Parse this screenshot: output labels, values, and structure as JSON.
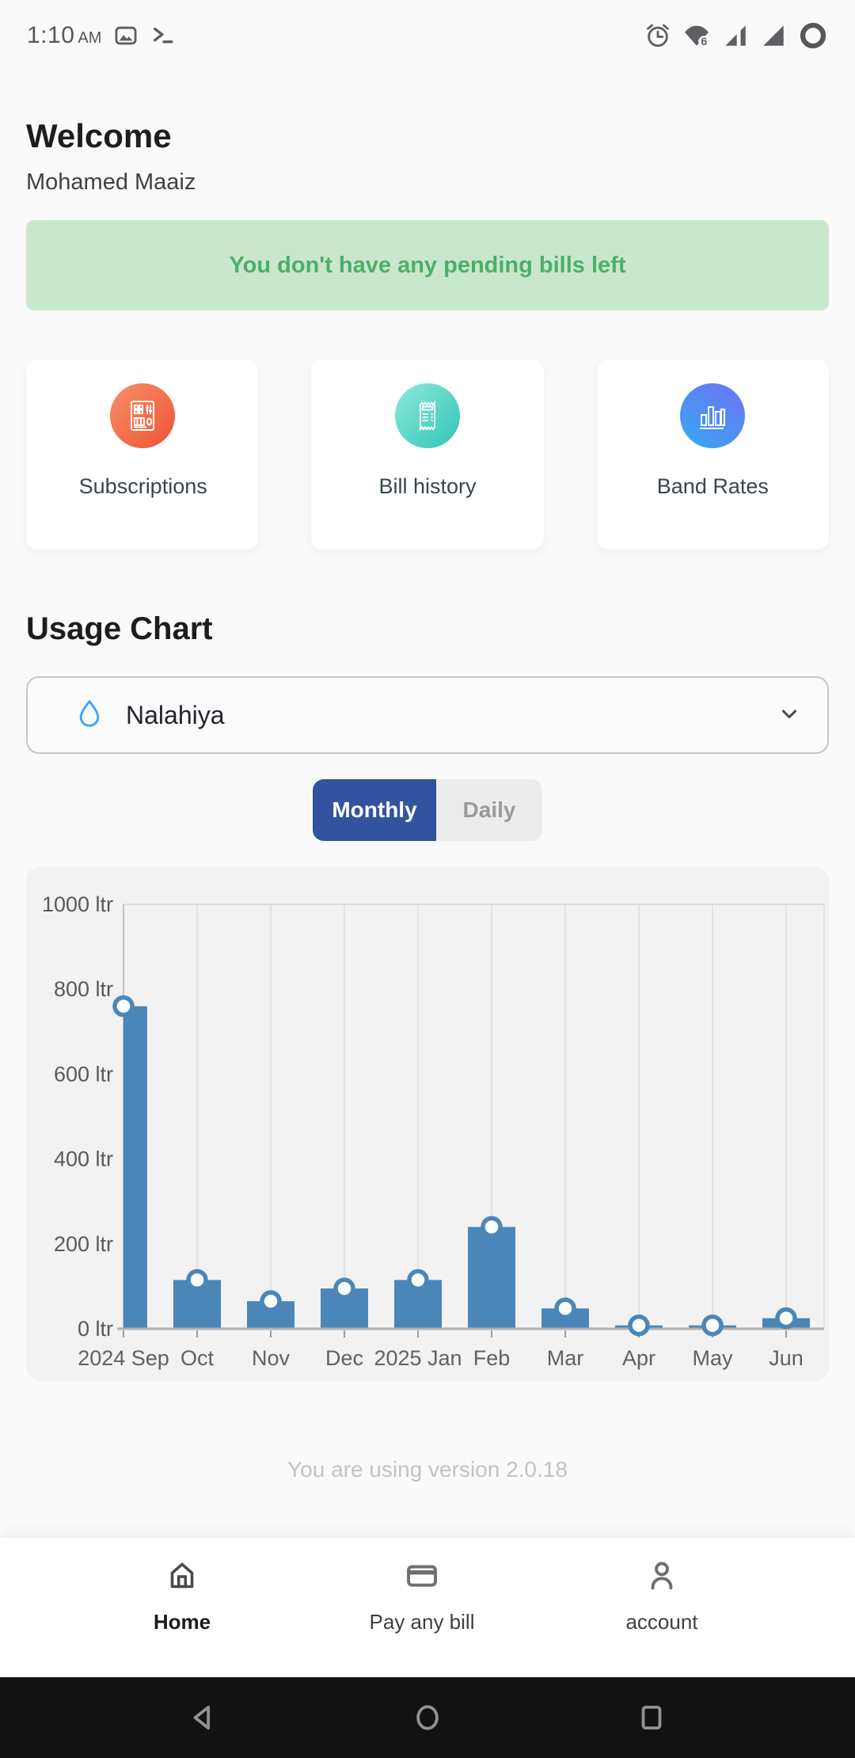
{
  "status_bar": {
    "time": "1:10",
    "meridiem": "AM",
    "wifi_label": "6",
    "left_icons": [
      "image-icon",
      "terminal-icon"
    ],
    "right_icons": [
      "alarm-icon",
      "wifi6-icon",
      "signal-partial-icon",
      "signal-full-icon",
      "battery-circle-icon"
    ]
  },
  "header": {
    "title": "Welcome",
    "subtitle": "Mohamed Maaiz"
  },
  "banner": {
    "text": "You don't have any pending bills left",
    "bg_color": "#c9e7cd",
    "text_color": "#4daf67"
  },
  "cards": [
    {
      "label": "Subscriptions",
      "icon": "subscriptions-icon",
      "gradient": [
        "#f79066",
        "#ee5434"
      ]
    },
    {
      "label": "Bill history",
      "icon": "bill-history-icon",
      "gradient": [
        "#8feadc",
        "#2ec4b6"
      ]
    },
    {
      "label": "Band Rates",
      "icon": "band-rates-icon",
      "gradient": [
        "#6f72f3",
        "#35a9f2"
      ]
    }
  ],
  "usage": {
    "heading": "Usage Chart",
    "selector": {
      "value": "Nalahiya",
      "icon": "water-drop-icon",
      "chevron": "chevron-down-icon"
    },
    "toggle": {
      "options": [
        "Monthly",
        "Daily"
      ],
      "active": "Monthly",
      "active_bg": "#34539e",
      "inactive_bg": "#ececec"
    }
  },
  "chart_data": {
    "type": "bar",
    "title": "Usage Chart",
    "categories": [
      "2024 Sep",
      "Oct",
      "Nov",
      "Dec",
      "2025 Jan",
      "Feb",
      "Mar",
      "Apr",
      "May",
      "Jun"
    ],
    "values": [
      760,
      115,
      65,
      95,
      115,
      240,
      48,
      8,
      8,
      25
    ],
    "unit": "ltr",
    "xlabel": "",
    "ylabel": "",
    "ylim": [
      0,
      1000
    ],
    "yticks": [
      0,
      200,
      400,
      600,
      800,
      1000
    ],
    "ytick_format": "{v} ltr",
    "bar_color": "#4b86b8",
    "marker": "circle-open-white",
    "grid": "vertical",
    "legend": "none",
    "panel_bg": "#f2f2f2"
  },
  "version_text": "You are using version 2.0.18",
  "bottom_nav": {
    "items": [
      {
        "label": "Home",
        "icon": "home-icon",
        "active": true
      },
      {
        "label": "Pay any bill",
        "icon": "pay-bill-icon",
        "active": false
      },
      {
        "label": "account",
        "icon": "account-icon",
        "active": false
      }
    ]
  },
  "android_nav": {
    "buttons": [
      "back-icon",
      "home-circle-icon",
      "recents-icon"
    ]
  }
}
